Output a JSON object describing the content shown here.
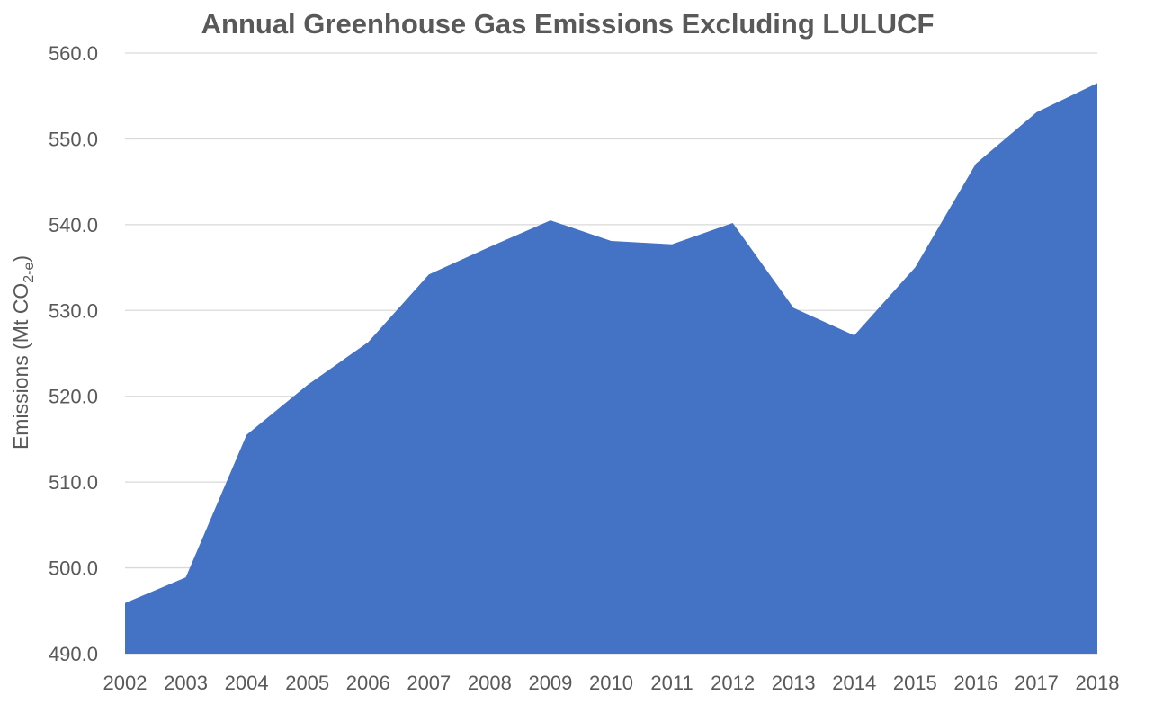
{
  "chart_data": {
    "type": "area",
    "title": "Annual Greenhouse Gas Emissions Excluding LULUCF",
    "xlabel": "",
    "ylabel": "Emissions (Mt CO",
    "ylabel_subscript": "2-e",
    "ylabel_suffix": ")",
    "ylim": [
      490,
      560
    ],
    "y_ticks": [
      490,
      500,
      510,
      520,
      530,
      540,
      550,
      560
    ],
    "y_tick_labels": [
      "490.0",
      "500.0",
      "510.0",
      "520.0",
      "530.0",
      "540.0",
      "550.0",
      "560.0"
    ],
    "grid": true,
    "legend": "none",
    "categories": [
      "2002",
      "2003",
      "2004",
      "2005",
      "2006",
      "2007",
      "2008",
      "2009",
      "2010",
      "2011",
      "2012",
      "2013",
      "2014",
      "2015",
      "2016",
      "2017",
      "2018"
    ],
    "series": [
      {
        "color": "#4472c4",
        "values": [
          495.9,
          498.9,
          515.5,
          521.3,
          526.3,
          534.2,
          537.4,
          540.5,
          538.1,
          537.7,
          540.2,
          530.3,
          527.1,
          535.0,
          547.1,
          553.1,
          556.5
        ]
      }
    ]
  }
}
